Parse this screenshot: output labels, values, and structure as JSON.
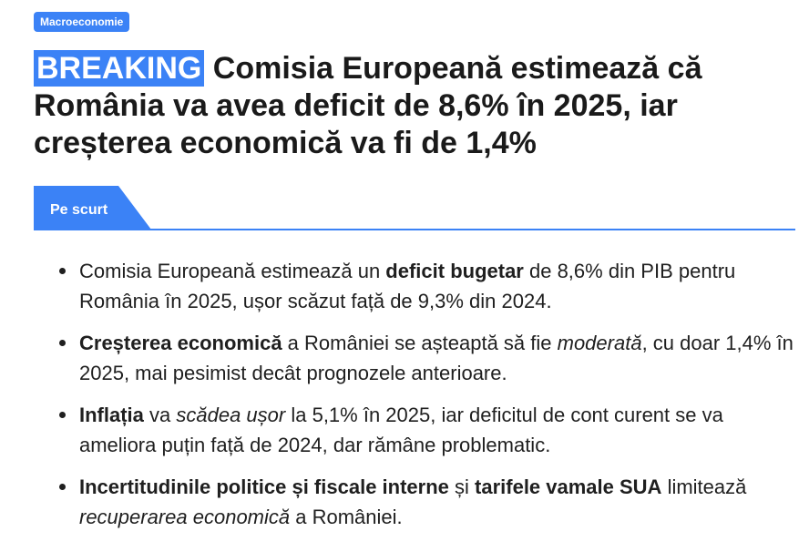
{
  "category": {
    "label": "Macroeconomie"
  },
  "headline": {
    "flag": "BREAKING",
    "title": "Comisia Europeană estimează că România va avea deficit de 8,6% în 2025, iar creșterea economică va fi de 1,4%"
  },
  "summary": {
    "tab_label": "Pe scurt",
    "items": [
      {
        "segments": [
          {
            "text": "Comisia Europeană estimează un "
          },
          {
            "text": "deficit bugetar",
            "bold": true
          },
          {
            "text": " de 8,6% din PIB pentru România în 2025, ușor scăzut față de 9,3% din 2024."
          }
        ]
      },
      {
        "segments": [
          {
            "text": "Creșterea economică",
            "bold": true
          },
          {
            "text": " a României se așteaptă să fie "
          },
          {
            "text": "moderată",
            "italic": true
          },
          {
            "text": ", cu doar 1,4% în 2025, mai pesimist decât prognozele anterioare."
          }
        ]
      },
      {
        "segments": [
          {
            "text": "Inflația",
            "bold": true
          },
          {
            "text": " va "
          },
          {
            "text": "scădea ușor",
            "italic": true
          },
          {
            "text": " la 5,1% în 2025, iar deficitul de cont curent se va ameliora puțin față de 2024, dar rămâne problematic."
          }
        ]
      },
      {
        "segments": [
          {
            "text": "Incertitudinile politice și fiscale interne",
            "bold": true
          },
          {
            "text": " și "
          },
          {
            "text": "tarifele vamale SUA",
            "bold": true
          },
          {
            "text": " limitează "
          },
          {
            "text": "recuperarea economică",
            "italic": true
          },
          {
            "text": " a României."
          }
        ]
      }
    ]
  },
  "colors": {
    "accent": "#3b82f6",
    "text": "#1a1a1a",
    "on_accent": "#ffffff"
  }
}
